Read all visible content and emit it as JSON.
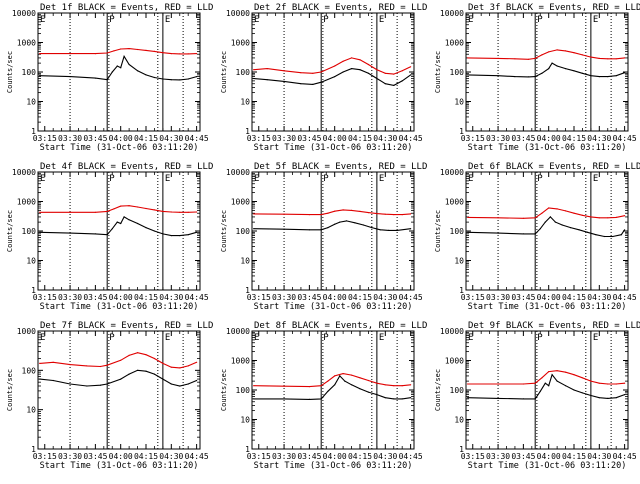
{
  "colors": {
    "events": "#000000",
    "lld": "#e00000",
    "axis": "#000000",
    "background": "#ffffff"
  },
  "x_tick_labels": [
    "03:15",
    "03:30",
    "03:45",
    "04:00",
    "04:15",
    "04:30",
    "04:45"
  ],
  "y_tick_labels": [
    "1",
    "10",
    "100",
    "1000",
    "10000"
  ],
  "ylabel": "Counts/sec",
  "xlabel": "Start Time (31-Oct-06 03:11:20)",
  "markers": {
    "P": "P",
    "E": "E"
  },
  "chart_data": [
    {
      "type": "line",
      "title": "Det 1f BLACK = Events, RED = LLD",
      "ylim": [
        1,
        10000
      ],
      "yscale": "log",
      "x_range": [
        "03:11",
        "04:47"
      ],
      "dotted_lines": [
        "03:30",
        "03:53",
        "04:22",
        "04:37"
      ],
      "solid_lines": [
        "03:52",
        "04:25"
      ],
      "series": [
        {
          "name": "Events",
          "color": "#000000",
          "x": [
            "03:12",
            "03:30",
            "03:45",
            "03:52",
            "03:55",
            "03:58",
            "04:00",
            "04:02",
            "04:05",
            "04:10",
            "04:15",
            "04:20",
            "04:25",
            "04:30",
            "04:35",
            "04:40",
            "04:45"
          ],
          "y": [
            75,
            70,
            62,
            55,
            100,
            160,
            140,
            340,
            180,
            110,
            80,
            65,
            58,
            55,
            54,
            58,
            70
          ]
        },
        {
          "name": "LLD",
          "color": "#e00000",
          "x": [
            "03:12",
            "03:30",
            "03:45",
            "03:52",
            "03:56",
            "04:00",
            "04:05",
            "04:10",
            "04:15",
            "04:20",
            "04:25",
            "04:30",
            "04:35",
            "04:40",
            "04:45"
          ],
          "y": [
            420,
            420,
            420,
            440,
            520,
            600,
            620,
            580,
            540,
            500,
            450,
            420,
            410,
            410,
            420
          ]
        }
      ]
    },
    {
      "type": "line",
      "title": "Det 2f BLACK = Events, RED = LLD",
      "ylim": [
        1,
        10000
      ],
      "yscale": "log",
      "x_range": [
        "03:11",
        "04:47"
      ],
      "dotted_lines": [
        "03:30",
        "03:53",
        "04:22",
        "04:37"
      ],
      "solid_lines": [
        "03:52",
        "04:25"
      ],
      "series": [
        {
          "name": "Events",
          "color": "#000000",
          "x": [
            "03:12",
            "03:20",
            "03:30",
            "03:40",
            "03:47",
            "03:52",
            "04:00",
            "04:05",
            "04:10",
            "04:15",
            "04:20",
            "04:25",
            "04:30",
            "04:35",
            "04:40",
            "04:45"
          ],
          "y": [
            60,
            55,
            48,
            40,
            38,
            45,
            70,
            100,
            130,
            120,
            90,
            60,
            40,
            35,
            50,
            80
          ]
        },
        {
          "name": "LLD",
          "color": "#e00000",
          "x": [
            "03:12",
            "03:20",
            "03:30",
            "03:40",
            "03:47",
            "03:52",
            "04:00",
            "04:05",
            "04:10",
            "04:15",
            "04:20",
            "04:25",
            "04:30",
            "04:35",
            "04:40",
            "04:45"
          ],
          "y": [
            120,
            130,
            110,
            95,
            90,
            100,
            160,
            230,
            300,
            260,
            180,
            120,
            90,
            85,
            110,
            150
          ]
        }
      ]
    },
    {
      "type": "line",
      "title": "Det 3f BLACK = Events, RED = LLD",
      "ylim": [
        1,
        10000
      ],
      "yscale": "log",
      "x_range": [
        "03:11",
        "04:47"
      ],
      "dotted_lines": [
        "03:30",
        "03:53",
        "04:22",
        "04:37"
      ],
      "solid_lines": [
        "03:52",
        "04:25"
      ],
      "series": [
        {
          "name": "Events",
          "color": "#000000",
          "x": [
            "03:12",
            "03:30",
            "03:40",
            "03:48",
            "03:52",
            "03:56",
            "04:00",
            "04:02",
            "04:05",
            "04:10",
            "04:15",
            "04:20",
            "04:25",
            "04:30",
            "04:35",
            "04:40",
            "04:45"
          ],
          "y": [
            80,
            75,
            70,
            68,
            70,
            90,
            130,
            200,
            160,
            130,
            110,
            90,
            75,
            70,
            70,
            75,
            95
          ]
        },
        {
          "name": "LLD",
          "color": "#e00000",
          "x": [
            "03:12",
            "03:30",
            "03:40",
            "03:48",
            "03:52",
            "03:56",
            "04:00",
            "04:05",
            "04:10",
            "04:15",
            "04:20",
            "04:25",
            "04:30",
            "04:35",
            "04:40",
            "04:45"
          ],
          "y": [
            300,
            290,
            280,
            270,
            290,
            380,
            480,
            560,
            520,
            450,
            380,
            320,
            290,
            280,
            280,
            300
          ]
        }
      ]
    },
    {
      "type": "line",
      "title": "Det 4f BLACK = Events, RED = LLD",
      "ylim": [
        1,
        10000
      ],
      "yscale": "log",
      "x_range": [
        "03:11",
        "04:47"
      ],
      "dotted_lines": [
        "03:30",
        "03:53",
        "04:22",
        "04:37"
      ],
      "solid_lines": [
        "03:52",
        "04:25"
      ],
      "series": [
        {
          "name": "Events",
          "color": "#000000",
          "x": [
            "03:12",
            "03:30",
            "03:45",
            "03:52",
            "03:55",
            "03:58",
            "04:00",
            "04:02",
            "04:05",
            "04:10",
            "04:15",
            "04:20",
            "04:25",
            "04:30",
            "04:35",
            "04:40",
            "04:45"
          ],
          "y": [
            90,
            85,
            80,
            75,
            120,
            200,
            180,
            300,
            240,
            180,
            130,
            100,
            80,
            70,
            70,
            75,
            90
          ]
        },
        {
          "name": "LLD",
          "color": "#e00000",
          "x": [
            "03:12",
            "03:30",
            "03:45",
            "03:52",
            "03:56",
            "04:00",
            "04:05",
            "04:10",
            "04:15",
            "04:20",
            "04:25",
            "04:30",
            "04:35",
            "04:40",
            "04:45"
          ],
          "y": [
            430,
            430,
            430,
            460,
            560,
            700,
            720,
            650,
            580,
            520,
            460,
            440,
            430,
            430,
            440
          ]
        }
      ]
    },
    {
      "type": "line",
      "title": "Det 5f BLACK = Events, RED = LLD",
      "ylim": [
        1,
        10000
      ],
      "yscale": "log",
      "x_range": [
        "03:11",
        "04:47"
      ],
      "dotted_lines": [
        "03:30",
        "03:53",
        "04:22",
        "04:37"
      ],
      "solid_lines": [
        "03:52",
        "04:25"
      ],
      "series": [
        {
          "name": "Events",
          "color": "#000000",
          "x": [
            "03:12",
            "03:30",
            "03:45",
            "03:52",
            "03:56",
            "04:00",
            "04:03",
            "04:07",
            "04:12",
            "04:17",
            "04:22",
            "04:27",
            "04:32",
            "04:37",
            "04:45"
          ],
          "y": [
            120,
            115,
            110,
            110,
            130,
            170,
            200,
            220,
            190,
            160,
            130,
            110,
            105,
            105,
            120
          ]
        },
        {
          "name": "LLD",
          "color": "#e00000",
          "x": [
            "03:12",
            "03:30",
            "03:45",
            "03:52",
            "03:56",
            "04:00",
            "04:05",
            "04:10",
            "04:15",
            "04:20",
            "04:25",
            "04:30",
            "04:35",
            "04:40",
            "04:45"
          ],
          "y": [
            380,
            370,
            360,
            360,
            400,
            470,
            520,
            500,
            460,
            420,
            390,
            370,
            360,
            360,
            380
          ]
        }
      ]
    },
    {
      "type": "line",
      "title": "Det 6f BLACK = Events, RED = LLD",
      "ylim": [
        1,
        10000
      ],
      "yscale": "log",
      "x_range": [
        "03:11",
        "04:47"
      ],
      "dotted_lines": [
        "03:30",
        "03:53",
        "04:22",
        "04:37"
      ],
      "solid_lines": [
        "03:52",
        "04:25"
      ],
      "series": [
        {
          "name": "Events",
          "color": "#000000",
          "x": [
            "03:12",
            "03:30",
            "03:45",
            "03:52",
            "03:55",
            "03:58",
            "04:01",
            "04:04",
            "04:08",
            "04:13",
            "04:18",
            "04:23",
            "04:28",
            "04:33",
            "04:38",
            "04:43",
            "04:45"
          ],
          "y": [
            90,
            85,
            80,
            80,
            120,
            200,
            300,
            200,
            160,
            130,
            110,
            90,
            75,
            65,
            65,
            75,
            110
          ]
        },
        {
          "name": "LLD",
          "color": "#e00000",
          "x": [
            "03:12",
            "03:30",
            "03:45",
            "03:52",
            "03:56",
            "04:00",
            "04:05",
            "04:10",
            "04:15",
            "04:20",
            "04:25",
            "04:30",
            "04:35",
            "04:40",
            "04:45"
          ],
          "y": [
            290,
            280,
            270,
            280,
            400,
            600,
            560,
            480,
            400,
            340,
            300,
            280,
            280,
            290,
            330
          ]
        }
      ]
    },
    {
      "type": "line",
      "title": "Det 7f BLACK = Events, RED = LLD",
      "ylim": [
        1,
        1000
      ],
      "yscale": "log",
      "x_range": [
        "03:11",
        "04:47"
      ],
      "dotted_lines": [
        "03:30",
        "03:53",
        "04:22",
        "04:37"
      ],
      "solid_lines": [
        "03:52",
        "04:25"
      ],
      "series": [
        {
          "name": "Events",
          "color": "#000000",
          "x": [
            "03:12",
            "03:20",
            "03:30",
            "03:40",
            "03:48",
            "03:52",
            "04:00",
            "04:05",
            "04:10",
            "04:15",
            "04:20",
            "04:25",
            "04:30",
            "04:35",
            "04:40",
            "04:45"
          ],
          "y": [
            60,
            55,
            45,
            40,
            42,
            45,
            60,
            80,
            100,
            95,
            80,
            60,
            45,
            40,
            45,
            55
          ]
        },
        {
          "name": "LLD",
          "color": "#e00000",
          "x": [
            "03:12",
            "03:20",
            "03:30",
            "03:40",
            "03:48",
            "03:52",
            "04:00",
            "04:05",
            "04:10",
            "04:15",
            "04:20",
            "04:25",
            "04:30",
            "04:35",
            "04:40",
            "04:45"
          ],
          "y": [
            150,
            160,
            140,
            130,
            125,
            135,
            180,
            240,
            280,
            250,
            200,
            150,
            120,
            115,
            130,
            160
          ]
        }
      ]
    },
    {
      "type": "line",
      "title": "Det 8f BLACK = Events, RED = LLD",
      "ylim": [
        1,
        10000
      ],
      "yscale": "log",
      "x_range": [
        "03:11",
        "04:47"
      ],
      "dotted_lines": [
        "03:30",
        "03:53",
        "04:22",
        "04:37"
      ],
      "solid_lines": [
        "03:52",
        "04:25"
      ],
      "series": [
        {
          "name": "Events",
          "color": "#000000",
          "x": [
            "03:12",
            "03:30",
            "03:45",
            "03:52",
            "03:56",
            "04:00",
            "04:03",
            "04:06",
            "04:10",
            "04:15",
            "04:20",
            "04:25",
            "04:30",
            "04:35",
            "04:40",
            "04:45"
          ],
          "y": [
            50,
            50,
            48,
            50,
            90,
            150,
            300,
            200,
            150,
            110,
            85,
            70,
            55,
            50,
            50,
            55
          ]
        },
        {
          "name": "LLD",
          "color": "#e00000",
          "x": [
            "03:12",
            "03:30",
            "03:45",
            "03:52",
            "03:56",
            "04:00",
            "04:05",
            "04:10",
            "04:15",
            "04:20",
            "04:25",
            "04:30",
            "04:35",
            "04:40",
            "04:45"
          ],
          "y": [
            140,
            135,
            130,
            140,
            200,
            300,
            360,
            320,
            260,
            210,
            170,
            150,
            140,
            140,
            150
          ]
        }
      ]
    },
    {
      "type": "line",
      "title": "Det 9f BLACK = Events, RED = LLD",
      "ylim": [
        1,
        10000
      ],
      "yscale": "log",
      "x_range": [
        "03:11",
        "04:47"
      ],
      "dotted_lines": [
        "03:30",
        "03:53",
        "04:22",
        "04:37"
      ],
      "solid_lines": [
        "03:52",
        "04:25"
      ],
      "series": [
        {
          "name": "Events",
          "color": "#000000",
          "x": [
            "03:12",
            "03:30",
            "03:45",
            "03:52",
            "03:55",
            "03:58",
            "04:00",
            "04:02",
            "04:05",
            "04:10",
            "04:15",
            "04:20",
            "04:25",
            "04:30",
            "04:35",
            "04:40",
            "04:45"
          ],
          "y": [
            55,
            52,
            50,
            50,
            90,
            170,
            140,
            330,
            200,
            140,
            100,
            80,
            65,
            55,
            52,
            55,
            70
          ]
        },
        {
          "name": "LLD",
          "color": "#e00000",
          "x": [
            "03:12",
            "03:30",
            "03:45",
            "03:52",
            "03:56",
            "04:00",
            "04:05",
            "04:10",
            "04:15",
            "04:20",
            "04:25",
            "04:30",
            "04:35",
            "04:40",
            "04:45"
          ],
          "y": [
            160,
            160,
            160,
            170,
            260,
            420,
            450,
            400,
            330,
            260,
            200,
            170,
            160,
            160,
            170
          ]
        }
      ]
    }
  ]
}
